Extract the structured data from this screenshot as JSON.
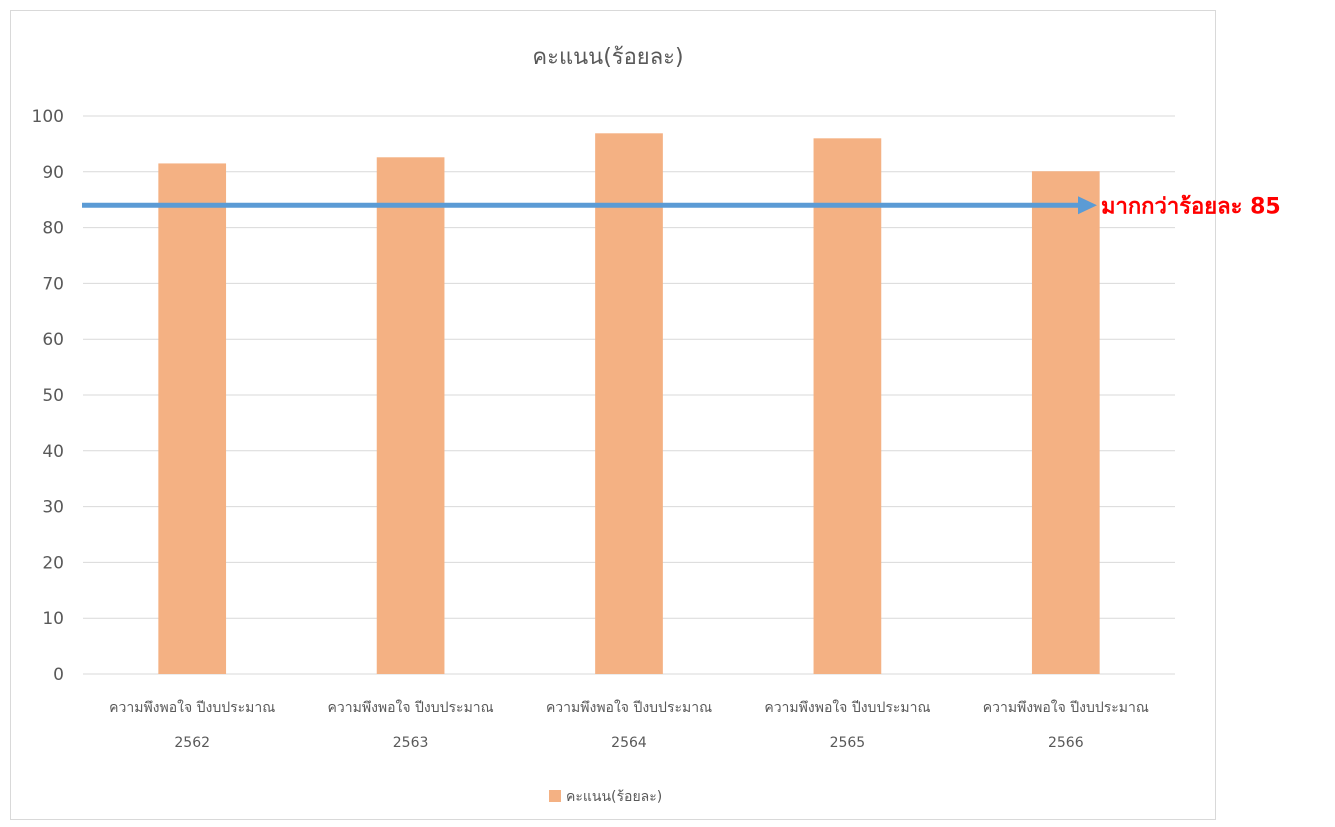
{
  "chart_data": {
    "type": "bar",
    "title": "คะแนน(ร้อยละ)",
    "categories": [
      [
        "ความพึงพอใจ ปีงบประมาณ",
        "2562"
      ],
      [
        "ความพึงพอใจ ปีงบประมาณ",
        "2563"
      ],
      [
        "ความพึงพอใจ ปีงบประมาณ",
        "2564"
      ],
      [
        "ความพึงพอใจ ปีงบประมาณ",
        "2565"
      ],
      [
        "ความพึงพอใจ ปีงบประมาณ",
        "2566"
      ]
    ],
    "series": [
      {
        "name": "คะแนน(ร้อยละ)",
        "values": [
          91.5,
          92.6,
          96.9,
          96.0,
          90.1
        ]
      }
    ],
    "ylim": [
      0,
      100
    ],
    "yticks": [
      0,
      10,
      20,
      30,
      40,
      50,
      60,
      70,
      80,
      90,
      100
    ],
    "grid": true,
    "legend": "bottom",
    "colors": {
      "bar": "#f4b183",
      "grid": "#d9d9d9",
      "arrow": "#5b9bd5",
      "annotation": "#ff0000",
      "text": "#595959"
    },
    "annotation": {
      "text": "มากกว่าร้อยละ 85",
      "y": 84
    }
  }
}
